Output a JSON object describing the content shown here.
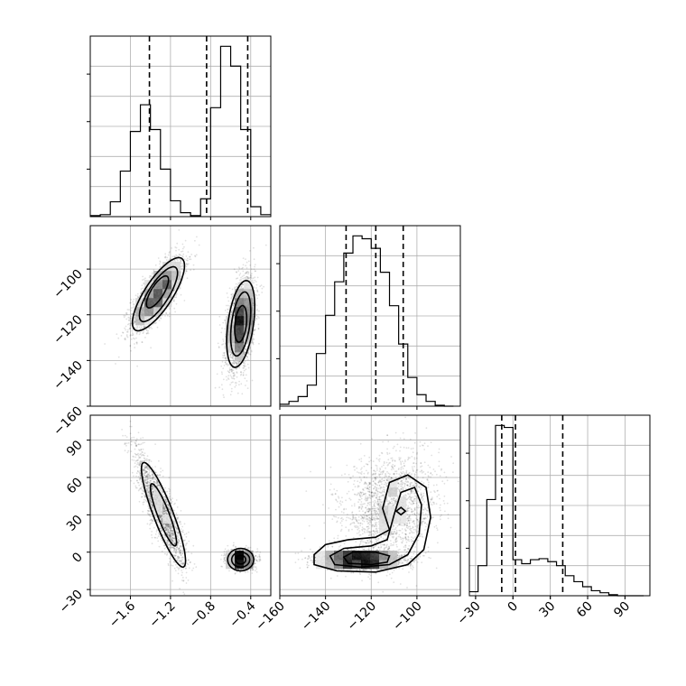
{
  "chart_data": {
    "type": "corner",
    "grid": true,
    "colors": {
      "line": "#000000",
      "grid": "#b0b0b0",
      "scatter": "#888888",
      "density_dark": "#000000"
    },
    "ranges": {
      "p0": [
        -2.0,
        -0.2
      ],
      "p1": [
        -160,
        -81
      ],
      "p2": [
        -35,
        110
      ]
    },
    "ticks": {
      "p0": {
        "values": [
          -1.6,
          -1.2,
          -0.8,
          -0.4
        ],
        "labels": [
          "−1.6",
          "−1.2",
          "−0.8",
          "−0.4"
        ]
      },
      "p1": {
        "values": [
          -160,
          -140,
          -120,
          -100
        ],
        "labels": [
          "−160",
          "−140",
          "−120",
          "−100"
        ]
      },
      "p2": {
        "values": [
          -30,
          0,
          30,
          60,
          90
        ],
        "labels": [
          "−30",
          "0",
          "30",
          "60",
          "90"
        ]
      }
    },
    "hist_p0": {
      "edges": [
        -2.0,
        -1.9,
        -1.8,
        -1.7,
        -1.6,
        -1.5,
        -1.4,
        -1.3,
        -1.2,
        -1.1,
        -1.0,
        -0.9,
        -0.8,
        -0.7,
        -0.6,
        -0.5,
        -0.4,
        -0.3,
        -0.2
      ],
      "counts": [
        1,
        2,
        15,
        46,
        86,
        113,
        88,
        48,
        16,
        4,
        1,
        18,
        110,
        172,
        152,
        88,
        10,
        2
      ],
      "quantiles": [
        -1.41,
        -0.84,
        -0.43
      ]
    },
    "hist_p1": {
      "edges": [
        -160,
        -156,
        -152,
        -148,
        -144,
        -140,
        -136,
        -132,
        -128,
        -124,
        -120,
        -116,
        -112,
        -108,
        -104,
        -100,
        -96,
        -92,
        -88,
        -84
      ],
      "counts": [
        2,
        5,
        10,
        22,
        55,
        95,
        130,
        160,
        178,
        175,
        165,
        140,
        105,
        65,
        30,
        12,
        5,
        1,
        0
      ],
      "quantiles": [
        -131,
        -118,
        -106
      ]
    },
    "hist_p2": {
      "edges": [
        -35,
        -28,
        -21,
        -14,
        -7,
        0,
        7,
        14,
        21,
        28,
        35,
        42,
        49,
        56,
        63,
        70,
        77,
        84,
        91,
        98,
        105
      ],
      "counts": [
        4,
        30,
        96,
        170,
        168,
        36,
        32,
        36,
        37,
        34,
        30,
        20,
        14,
        9,
        5,
        3,
        1,
        0,
        0,
        0
      ],
      "quantiles": [
        -9,
        2,
        40
      ]
    },
    "scatter_p1_vs_p0": {
      "modes": [
        {
          "center": [
            -1.33,
            -111
          ],
          "spread": [
            0.13,
            8
          ],
          "corr": 0.75,
          "weight": 0.47
        },
        {
          "center": [
            -0.5,
            -124
          ],
          "spread": [
            0.07,
            10
          ],
          "corr": 0.4,
          "weight": 0.53
        }
      ],
      "contours": [
        {
          "center": [
            -1.32,
            -111
          ],
          "a": [
            0.26,
            16
          ],
          "corr": 0.78
        },
        {
          "center": [
            -1.32,
            -111
          ],
          "a": [
            0.19,
            12
          ],
          "corr": 0.78
        },
        {
          "center": [
            -1.33,
            -110
          ],
          "a": [
            0.11,
            7
          ],
          "corr": 0.75
        },
        {
          "center": [
            -0.5,
            -124
          ],
          "a": [
            0.14,
            19
          ],
          "corr": 0.4
        },
        {
          "center": [
            -0.5,
            -124
          ],
          "a": [
            0.1,
            14
          ],
          "corr": 0.4
        },
        {
          "center": [
            -0.5,
            -124
          ],
          "a": [
            0.06,
            8
          ],
          "corr": 0.3
        }
      ]
    },
    "scatter_p2_vs_p0": {
      "modes": [
        {
          "center": [
            -1.3,
            35
          ],
          "spread": [
            0.12,
            22
          ],
          "corr": -0.85,
          "weight": 0.47
        },
        {
          "center": [
            -0.5,
            -6
          ],
          "spread": [
            0.06,
            3.5
          ],
          "corr": 0.0,
          "weight": 0.53
        }
      ],
      "contours": [
        {
          "center": [
            -1.27,
            30
          ],
          "a": [
            0.22,
            42
          ],
          "corr": -0.88
        },
        {
          "center": [
            -1.27,
            30
          ],
          "a": [
            0.13,
            25
          ],
          "corr": -0.88
        },
        {
          "center": [
            -0.5,
            -6
          ],
          "a": [
            0.13,
            9
          ],
          "corr": 0.0
        },
        {
          "center": [
            -0.5,
            -6
          ],
          "a": [
            0.09,
            6
          ],
          "corr": 0.0
        },
        {
          "center": [
            -0.5,
            -6
          ],
          "a": [
            0.05,
            3.5
          ],
          "corr": 0.0
        }
      ]
    },
    "scatter_p2_vs_p1": {
      "modes": [
        {
          "center": [
            -125,
            -6
          ],
          "spread": [
            9,
            3.5
          ],
          "corr": 0.0,
          "weight": 0.53
        },
        {
          "center": [
            -112,
            35
          ],
          "spread": [
            10,
            22
          ],
          "corr": 0.2,
          "weight": 0.47
        }
      ],
      "contours_paths_data": [
        [
          [
            -145,
            -2
          ],
          [
            -140,
            6
          ],
          [
            -130,
            10
          ],
          [
            -118,
            12
          ],
          [
            -112,
            18
          ],
          [
            -115,
            35
          ],
          [
            -112,
            56
          ],
          [
            -104,
            62
          ],
          [
            -96,
            52
          ],
          [
            -94,
            28
          ],
          [
            -97,
            2
          ],
          [
            -104,
            -10
          ],
          [
            -118,
            -16
          ],
          [
            -135,
            -15
          ],
          [
            -145,
            -10
          ],
          [
            -145,
            -2
          ]
        ],
        [
          [
            -138,
            -3
          ],
          [
            -132,
            3
          ],
          [
            -120,
            5
          ],
          [
            -113,
            10
          ],
          [
            -110,
            30
          ],
          [
            -107,
            48
          ],
          [
            -101,
            52
          ],
          [
            -98,
            38
          ],
          [
            -99,
            15
          ],
          [
            -104,
            -2
          ],
          [
            -112,
            -10
          ],
          [
            -125,
            -12
          ],
          [
            -136,
            -10
          ],
          [
            -138,
            -3
          ]
        ],
        [
          [
            -132,
            -4
          ],
          [
            -128,
            0
          ],
          [
            -118,
            0
          ],
          [
            -112,
            -3
          ],
          [
            -113,
            -8
          ],
          [
            -120,
            -10
          ],
          [
            -130,
            -9
          ],
          [
            -132,
            -4
          ]
        ],
        [
          [
            -109,
            33
          ],
          [
            -107,
            30
          ],
          [
            -105,
            33
          ],
          [
            -107,
            36
          ],
          [
            -109,
            33
          ]
        ]
      ]
    }
  }
}
